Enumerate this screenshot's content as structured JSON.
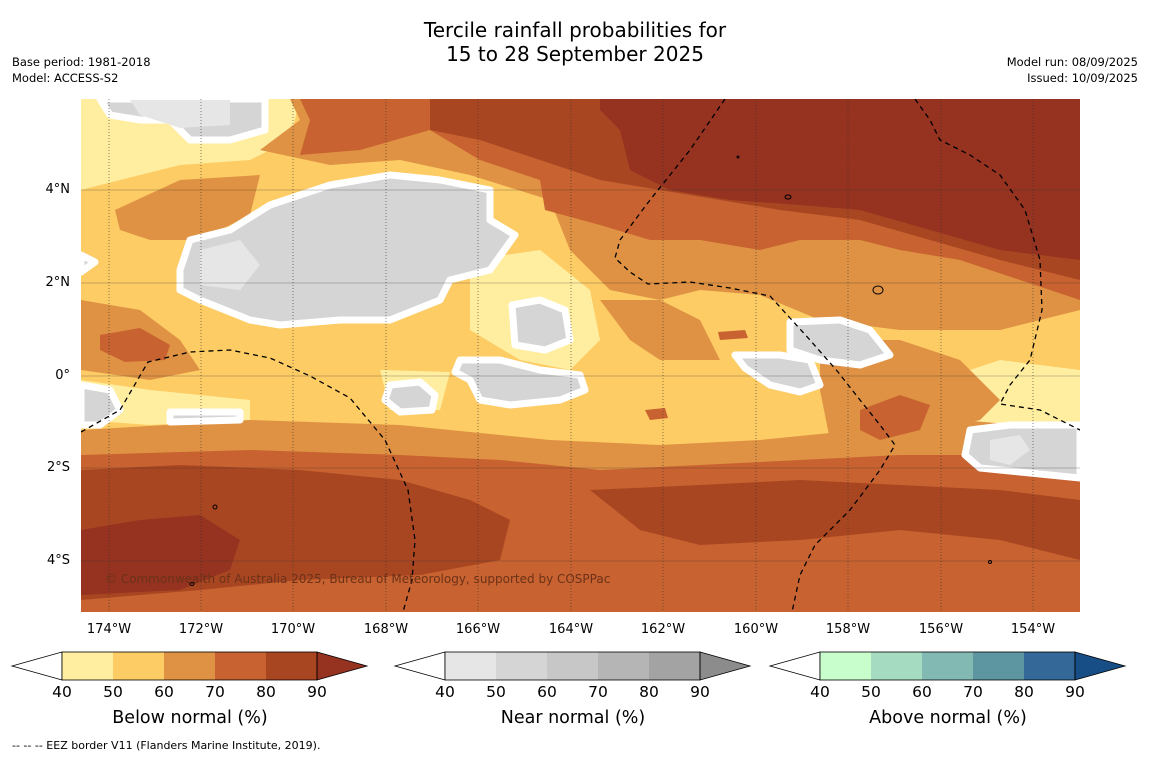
{
  "title": {
    "line1": "Tercile rainfall probabilities for",
    "line2": "15 to 28 September 2025"
  },
  "meta_left": {
    "base_period": "Base period: 1981-2018",
    "model": "Model: ACCESS-S2"
  },
  "meta_right": {
    "model_run": "Model run: 08/09/2025",
    "issued": "Issued: 10/09/2025"
  },
  "map": {
    "copyright": "© Commonwealth of Australia 2025, Bureau of Meteorology, supported by COSPPac",
    "lat_labels": [
      "4°N",
      "2°N",
      "0°",
      "2°S",
      "4°S"
    ],
    "lon_labels": [
      "174°W",
      "172°W",
      "170°W",
      "168°W",
      "166°W",
      "164°W",
      "162°W",
      "160°W",
      "158°W",
      "156°W",
      "154°W"
    ],
    "lon_range": [
      -174.6,
      -153.0
    ],
    "lat_range": [
      -5.0,
      5.8
    ]
  },
  "colorbars": [
    {
      "title": "Below normal (%)",
      "ticks": [
        "40",
        "50",
        "60",
        "70",
        "80",
        "90"
      ],
      "colors": [
        "#ffeea0",
        "#fdcc65",
        "#df9243",
        "#c86230",
        "#a94622",
        "#953220"
      ]
    },
    {
      "title": "Near normal (%)",
      "ticks": [
        "40",
        "50",
        "60",
        "70",
        "80",
        "90"
      ],
      "colors": [
        "#e6e6e6",
        "#d5d5d5",
        "#c7c7c7",
        "#b5b5b5",
        "#a3a3a3",
        "#8c8c8c"
      ]
    },
    {
      "title": "Above normal (%)",
      "ticks": [
        "40",
        "50",
        "60",
        "70",
        "80",
        "90"
      ],
      "colors": [
        "#c8fdcc",
        "#a5dbc0",
        "#83b9b3",
        "#5d95a1",
        "#336898",
        "#184e86"
      ]
    }
  ],
  "footnote": "--  --  -- EEZ border V11 (Flanders Marine Institute, 2019).",
  "colors": {
    "white_contour": "#ffffff",
    "gridline": "#333333"
  }
}
